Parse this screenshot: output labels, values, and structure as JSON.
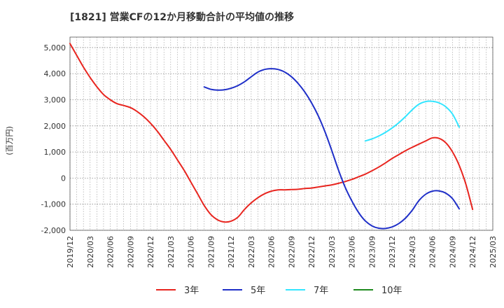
{
  "chart_data": {
    "type": "line",
    "title": "[1821]  営業CFの12か月移動合計の平均値の推移",
    "ylabel": "(百万円)",
    "xlabel": "",
    "ylim": [
      -2000,
      5400
    ],
    "yticks": [
      -2000,
      -1000,
      0,
      1000,
      2000,
      3000,
      4000,
      5000
    ],
    "ytick_labels": [
      "-2,000",
      "-1,000",
      "0",
      "1,000",
      "2,000",
      "3,000",
      "4,000",
      "5,000"
    ],
    "xticks": [
      "2019/12",
      "2020/03",
      "2020/06",
      "2020/09",
      "2020/12",
      "2021/03",
      "2021/06",
      "2021/09",
      "2021/12",
      "2022/03",
      "2022/06",
      "2022/09",
      "2022/12",
      "2023/03",
      "2023/06",
      "2023/09",
      "2023/12",
      "2024/03",
      "2024/06",
      "2024/09",
      "2024/12",
      "2025/03"
    ],
    "grid": true,
    "legend_position": "bottom",
    "series": [
      {
        "name": "3年",
        "color": "#e8251f",
        "start": "2019/12",
        "values": [
          5150,
          4700,
          4250,
          3850,
          3500,
          3200,
          3000,
          2850,
          2780,
          2700,
          2550,
          2350,
          2100,
          1800,
          1450,
          1100,
          700,
          300,
          -150,
          -600,
          -1050,
          -1400,
          -1600,
          -1680,
          -1650,
          -1500,
          -1200,
          -950,
          -750,
          -600,
          -500,
          -450,
          -450,
          -440,
          -430,
          -400,
          -380,
          -340,
          -300,
          -260,
          -200,
          -130,
          -50,
          50,
          150,
          280,
          420,
          580,
          750,
          900,
          1050,
          1180,
          1300,
          1420,
          1540,
          1520,
          1350,
          1000,
          480,
          -250,
          -1200
        ]
      },
      {
        "name": "5年",
        "color": "#1f2fc8",
        "start": "2021/08",
        "values": [
          3490,
          3400,
          3370,
          3380,
          3440,
          3540,
          3690,
          3880,
          4060,
          4160,
          4190,
          4160,
          4060,
          3880,
          3620,
          3290,
          2880,
          2380,
          1770,
          1060,
          310,
          -350,
          -880,
          -1320,
          -1640,
          -1830,
          -1920,
          -1930,
          -1870,
          -1740,
          -1530,
          -1230,
          -860,
          -620,
          -500,
          -490,
          -580,
          -790,
          -1180
        ]
      },
      {
        "name": "7年",
        "color": "#33e5ff",
        "start": "2023/08",
        "values": [
          1420,
          1500,
          1610,
          1750,
          1920,
          2120,
          2360,
          2620,
          2830,
          2930,
          2940,
          2880,
          2730,
          2450,
          1950
        ]
      },
      {
        "name": "10年",
        "color": "#1f8a1f",
        "start": "2024/09",
        "values": []
      }
    ]
  }
}
